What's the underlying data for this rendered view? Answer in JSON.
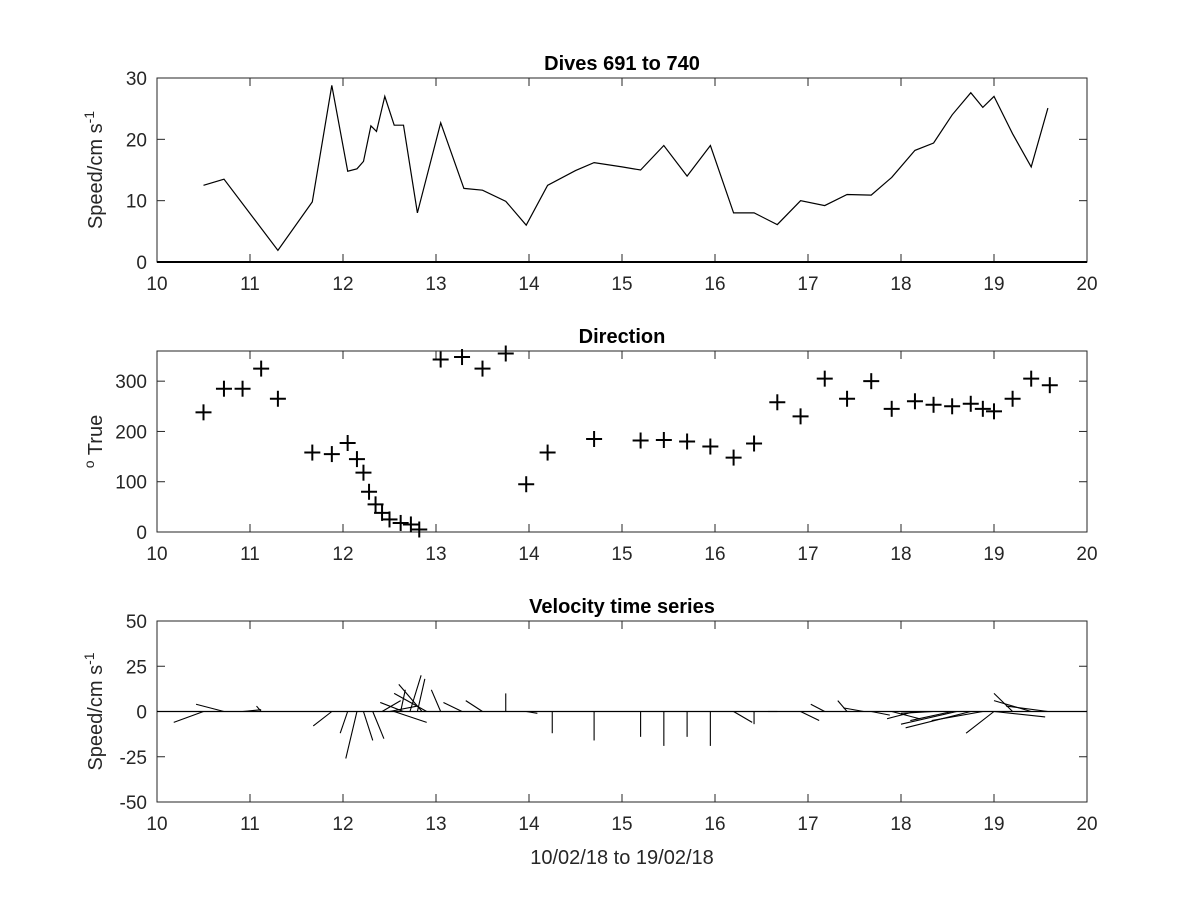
{
  "chart_data": [
    {
      "type": "line",
      "title": "Dives 691 to 740",
      "xlabel": "",
      "ylabel": "Speed/cm s",
      "ylabel_superscript": "-1",
      "xlim": [
        10,
        20
      ],
      "ylim": [
        0,
        30
      ],
      "xticks": [
        10,
        11,
        12,
        13,
        14,
        15,
        16,
        17,
        18,
        19,
        20
      ],
      "yticks": [
        0,
        10,
        20,
        30
      ],
      "grid": false,
      "series": [
        {
          "color": "#000000",
          "x": [
            10.5,
            10.72,
            11.3,
            11.67,
            11.88,
            12.05,
            12.15,
            12.22,
            12.3,
            12.36,
            12.45,
            12.55,
            12.65,
            12.8,
            13.05,
            13.3,
            13.5,
            13.75,
            13.97,
            14.2,
            14.5,
            14.7,
            15.0,
            15.2,
            15.45,
            15.7,
            15.95,
            16.2,
            16.42,
            16.67,
            16.92,
            17.18,
            17.42,
            17.68,
            17.9,
            18.15,
            18.35,
            18.55,
            18.75,
            18.88,
            19.0,
            19.2,
            19.4,
            19.58
          ],
          "y": [
            12.5,
            13.5,
            1.9,
            9.8,
            28.8,
            14.8,
            15.2,
            16.4,
            22.2,
            21.3,
            27.0,
            22.3,
            22.3,
            8.0,
            22.7,
            12.0,
            11.7,
            9.9,
            6.0,
            12.5,
            14.9,
            16.2,
            15.5,
            15.0,
            19.0,
            14.0,
            19.0,
            8.0,
            8.0,
            6.1,
            10.0,
            9.2,
            11.0,
            10.9,
            13.8,
            18.2,
            19.4,
            24.0,
            27.6,
            25.2,
            27.0,
            20.9,
            15.5,
            25.1
          ]
        }
      ]
    },
    {
      "type": "scatter",
      "title": "Direction",
      "xlabel": "",
      "ylabel": "True",
      "ylabel_superscript": "o",
      "xlim": [
        10,
        20
      ],
      "ylim": [
        0,
        360
      ],
      "xticks": [
        10,
        11,
        12,
        13,
        14,
        15,
        16,
        17,
        18,
        19,
        20
      ],
      "yticks": [
        0,
        100,
        200,
        300
      ],
      "marker": "+",
      "grid": false,
      "series": [
        {
          "color": "#000000",
          "x": [
            10.5,
            10.72,
            10.92,
            11.12,
            11.3,
            11.67,
            11.88,
            12.05,
            12.15,
            12.22,
            12.28,
            12.35,
            12.42,
            12.5,
            12.62,
            12.73,
            12.82,
            13.05,
            13.28,
            13.5,
            13.75,
            13.97,
            14.2,
            14.7,
            15.2,
            15.45,
            15.7,
            15.95,
            16.2,
            16.42,
            16.67,
            16.92,
            17.18,
            17.42,
            17.68,
            17.9,
            18.15,
            18.35,
            18.55,
            18.75,
            18.88,
            19.0,
            19.2,
            19.4,
            19.6
          ],
          "y": [
            238,
            285,
            285,
            325,
            265,
            158,
            155,
            177,
            145,
            118,
            80,
            55,
            38,
            25,
            18,
            15,
            5,
            343,
            348,
            325,
            355,
            95,
            158,
            185,
            182,
            183,
            180,
            170,
            148,
            176,
            258,
            230,
            305,
            265,
            300,
            245,
            260,
            253,
            250,
            255,
            245,
            240,
            265,
            305,
            292
          ]
        }
      ]
    },
    {
      "type": "vector",
      "title": "Velocity time series",
      "xlabel": "10/02/18 to 19/02/18",
      "ylabel": "Speed/cm s",
      "ylabel_superscript": "-1",
      "xlim": [
        10,
        20
      ],
      "ylim": [
        -50,
        50
      ],
      "xticks": [
        10,
        11,
        12,
        13,
        14,
        15,
        16,
        17,
        18,
        19,
        20
      ],
      "yticks": [
        -50,
        -25,
        0,
        25,
        50
      ],
      "yticklabels": [
        "-50",
        "-25",
        "0",
        "25",
        "50"
      ],
      "grid": false,
      "vectors": [
        {
          "x": 10.5,
          "dx": -0.32,
          "dy": -6
        },
        {
          "x": 10.72,
          "dx": -0.3,
          "dy": 4
        },
        {
          "x": 10.92,
          "dx": 0.2,
          "dy": 1
        },
        {
          "x": 11.12,
          "dx": -0.05,
          "dy": 3
        },
        {
          "x": 11.67,
          "dx": 0.0,
          "dy": 0
        },
        {
          "x": 11.88,
          "dx": -0.2,
          "dy": -8
        },
        {
          "x": 12.05,
          "dx": -0.08,
          "dy": -12
        },
        {
          "x": 12.15,
          "dx": -0.12,
          "dy": -26
        },
        {
          "x": 12.22,
          "dx": 0.1,
          "dy": -16
        },
        {
          "x": 12.32,
          "dx": 0.12,
          "dy": -15
        },
        {
          "x": 12.42,
          "dx": 0.2,
          "dy": 6
        },
        {
          "x": 12.5,
          "dx": 0.3,
          "dy": 3
        },
        {
          "x": 12.55,
          "dx": 0.35,
          "dy": -6
        },
        {
          "x": 12.62,
          "dx": 0.05,
          "dy": 12
        },
        {
          "x": 12.65,
          "dx": -0.25,
          "dy": 5
        },
        {
          "x": 12.72,
          "dx": 0.12,
          "dy": 20
        },
        {
          "x": 12.8,
          "dx": 0.08,
          "dy": 18
        },
        {
          "x": 12.85,
          "dx": -0.25,
          "dy": 15
        },
        {
          "x": 12.9,
          "dx": -0.35,
          "dy": 10
        },
        {
          "x": 13.05,
          "dx": -0.1,
          "dy": 12
        },
        {
          "x": 13.28,
          "dx": -0.2,
          "dy": 5
        },
        {
          "x": 13.5,
          "dx": -0.18,
          "dy": 6
        },
        {
          "x": 13.75,
          "dx": 0.0,
          "dy": 10
        },
        {
          "x": 13.97,
          "dx": 0.12,
          "dy": -1
        },
        {
          "x": 14.25,
          "dx": 0.0,
          "dy": -12
        },
        {
          "x": 14.7,
          "dx": 0.0,
          "dy": -16
        },
        {
          "x": 15.2,
          "dx": 0.0,
          "dy": -14
        },
        {
          "x": 15.45,
          "dx": 0.0,
          "dy": -19
        },
        {
          "x": 15.7,
          "dx": 0.0,
          "dy": -14
        },
        {
          "x": 15.95,
          "dx": 0.0,
          "dy": -19
        },
        {
          "x": 16.2,
          "dx": 0.2,
          "dy": -6
        },
        {
          "x": 16.42,
          "dx": 0.0,
          "dy": -7
        },
        {
          "x": 16.67,
          "dx": -0.1,
          "dy": 0
        },
        {
          "x": 16.92,
          "dx": 0.2,
          "dy": -5
        },
        {
          "x": 17.18,
          "dx": -0.15,
          "dy": 4
        },
        {
          "x": 17.42,
          "dx": -0.1,
          "dy": 6
        },
        {
          "x": 17.6,
          "dx": -0.22,
          "dy": 2
        },
        {
          "x": 17.68,
          "dx": 0.2,
          "dy": -2
        },
        {
          "x": 17.9,
          "dx": 0.3,
          "dy": -4
        },
        {
          "x": 18.15,
          "dx": -0.3,
          "dy": -4
        },
        {
          "x": 18.35,
          "dx": -0.35,
          "dy": -1
        },
        {
          "x": 18.55,
          "dx": -0.45,
          "dy": -5
        },
        {
          "x": 18.6,
          "dx": -0.6,
          "dy": -7
        },
        {
          "x": 18.75,
          "dx": -0.7,
          "dy": -9
        },
        {
          "x": 18.88,
          "dx": -0.55,
          "dy": -5
        },
        {
          "x": 19.0,
          "dx": -0.3,
          "dy": -12
        },
        {
          "x": 19.0,
          "dx": 0.55,
          "dy": -3
        },
        {
          "x": 19.2,
          "dx": -0.2,
          "dy": 10
        },
        {
          "x": 19.4,
          "dx": -0.4,
          "dy": 6
        },
        {
          "x": 19.58,
          "dx": -0.45,
          "dy": 3
        }
      ]
    }
  ]
}
